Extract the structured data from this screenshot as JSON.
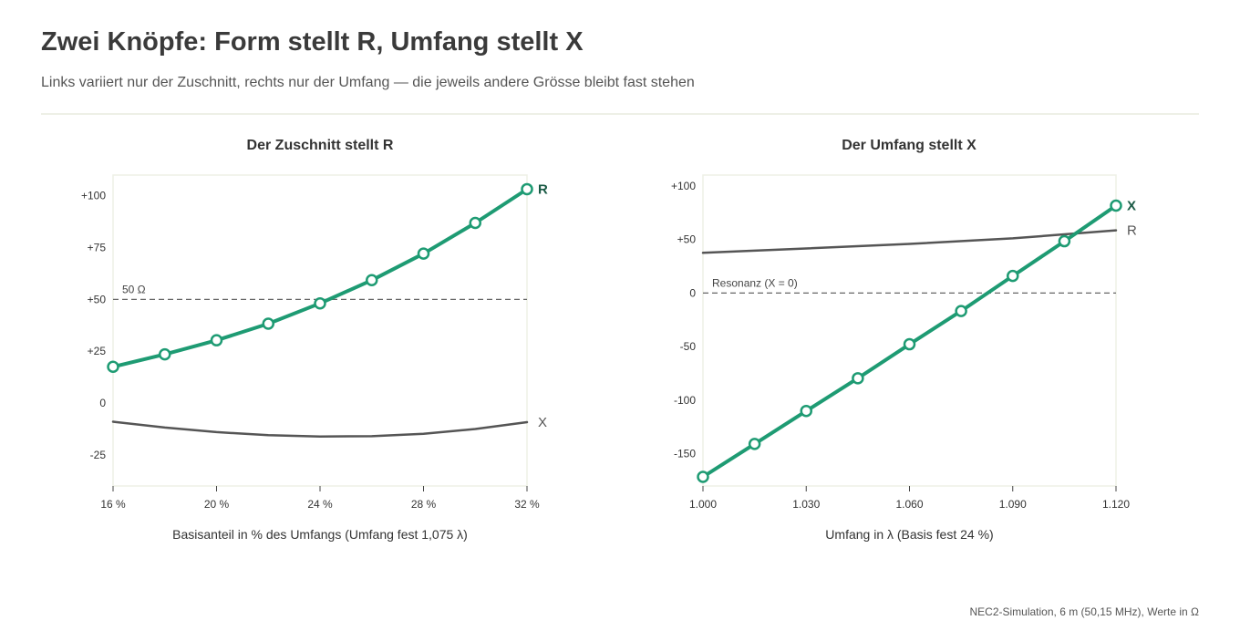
{
  "header": {
    "title": "Zwei Knöpfe: Form stellt R, Umfang stellt X",
    "subtitle": "Links variiert nur der Zuschnitt, rechts nur der Umfang — die jeweils andere Grösse bleibt fast stehen"
  },
  "footer": {
    "note": "NEC2-Simulation, 6 m (50,15 MHz), Werte in Ω"
  },
  "colors": {
    "primary": "#1e9b73",
    "primary_label": "#1a5a45",
    "secondary": "#555555",
    "reference": "#666666",
    "frame": "#eef0e6"
  },
  "chart_data": [
    {
      "type": "line",
      "title": "Der Zuschnitt stellt R",
      "xlabel": "Basisanteil in % des Umfangs (Umfang fest 1,075 λ)",
      "ylabel": "",
      "xlim": [
        16,
        32
      ],
      "ylim": [
        -40,
        110
      ],
      "xticks": [
        16,
        20,
        24,
        28,
        32
      ],
      "xtick_labels": [
        "16 %",
        "20 %",
        "24 %",
        "28 %",
        "32 %"
      ],
      "yticks": [
        100,
        75,
        50,
        25,
        0,
        -25
      ],
      "ytick_labels": [
        "+100",
        "+75",
        "+50",
        "+25",
        "0",
        "-25"
      ],
      "reference_line": {
        "y": 50,
        "label": "50 Ω"
      },
      "series": [
        {
          "name": "R",
          "emphasis": true,
          "markers": true,
          "x": [
            16,
            18,
            20,
            22,
            24,
            26,
            28,
            30,
            32
          ],
          "y": [
            17.5,
            23.5,
            30.3,
            38.3,
            48.1,
            59.3,
            72.1,
            86.9,
            103.2
          ]
        },
        {
          "name": "X",
          "emphasis": false,
          "markers": false,
          "x": [
            16,
            18,
            20,
            22,
            24,
            26,
            28,
            30,
            32
          ],
          "y": [
            -9,
            -11.8,
            -14,
            -15.5,
            -16.1,
            -16,
            -14.8,
            -12.5,
            -9.2
          ]
        }
      ]
    },
    {
      "type": "line",
      "title": "Der Umfang stellt X",
      "xlabel": "Umfang in λ (Basis fest 24 %)",
      "ylabel": "",
      "xlim": [
        1.0,
        1.12
      ],
      "ylim": [
        -180,
        110
      ],
      "xticks": [
        1.0,
        1.03,
        1.06,
        1.09,
        1.12
      ],
      "xtick_labels": [
        "1.000",
        "1.030",
        "1.060",
        "1.090",
        "1.120"
      ],
      "yticks": [
        100,
        50,
        0,
        -50,
        -100,
        -150
      ],
      "ytick_labels": [
        "+100",
        "+50",
        "0",
        "-50",
        "-100",
        "-150"
      ],
      "reference_line": {
        "y": 0,
        "label": "Resonanz (X = 0)"
      },
      "series": [
        {
          "name": "X",
          "emphasis": true,
          "markers": true,
          "x": [
            1.0,
            1.015,
            1.03,
            1.045,
            1.06,
            1.075,
            1.09,
            1.105,
            1.12
          ],
          "y": [
            -171.5,
            -140.8,
            -110,
            -79.5,
            -47.8,
            -16.8,
            15.9,
            48.3,
            81.5
          ]
        },
        {
          "name": "R",
          "emphasis": false,
          "markers": false,
          "x": [
            1.0,
            1.03,
            1.06,
            1.09,
            1.12
          ],
          "y": [
            37.5,
            41.5,
            45.8,
            51,
            58.5
          ]
        }
      ]
    }
  ]
}
